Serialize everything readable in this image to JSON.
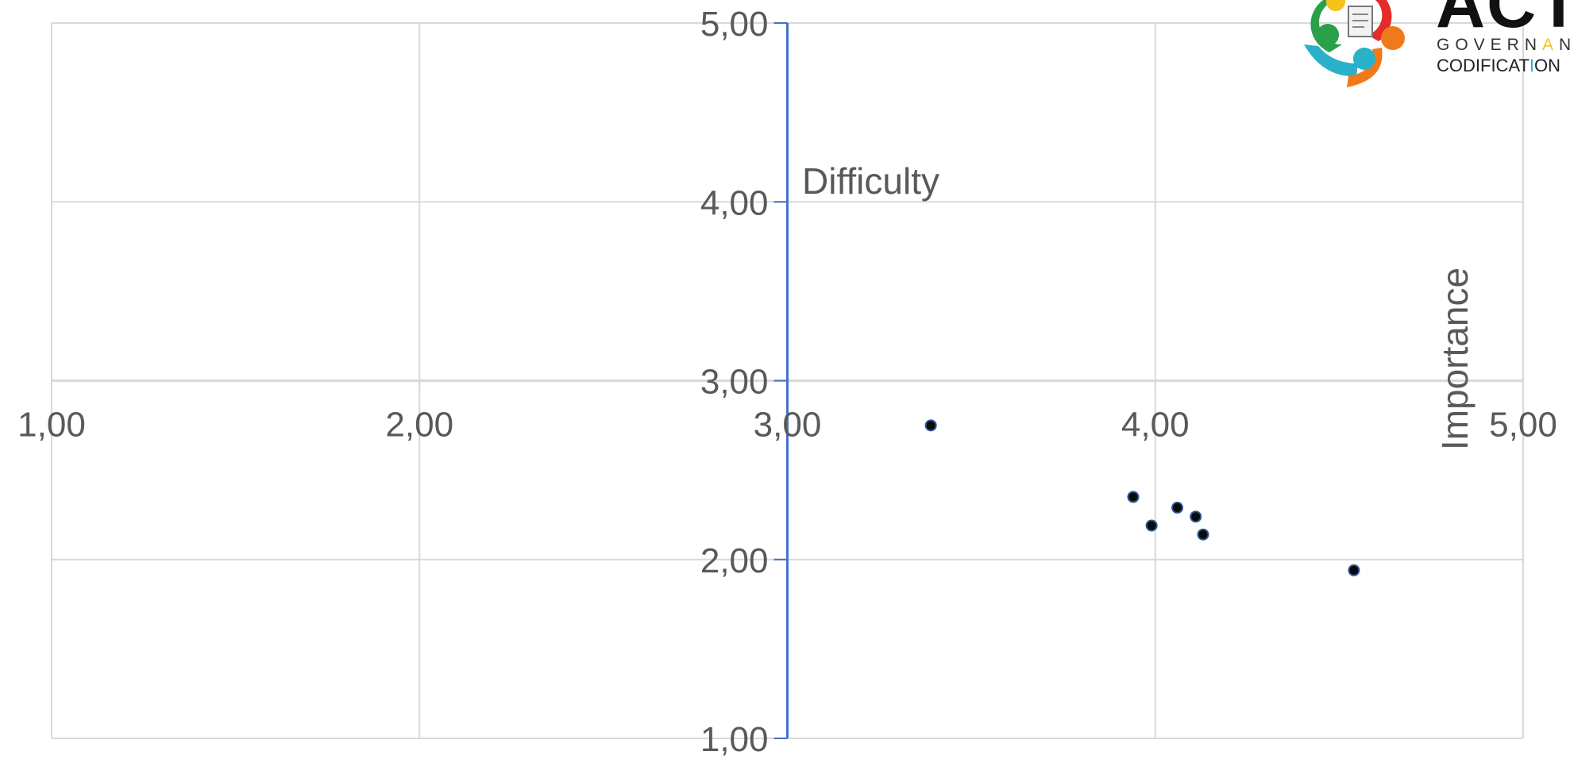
{
  "chart_data": {
    "type": "scatter",
    "xlabel": "Importance",
    "ylabel": "Difficulty",
    "xlim": [
      1,
      5
    ],
    "ylim": [
      1,
      5
    ],
    "x_ticks": [
      "1,00",
      "2,00",
      "3,00",
      "4,00",
      "5,00"
    ],
    "y_ticks": [
      "1,00",
      "2,00",
      "3,00",
      "4,00",
      "5,00"
    ],
    "x_tick_values": [
      1,
      2,
      3,
      4,
      5
    ],
    "y_tick_values": [
      1,
      2,
      3,
      4,
      5
    ],
    "y_axis_crosses_x": 3,
    "x_axis_crosses_y": 3,
    "grid": true,
    "points": [
      {
        "x": 3.39,
        "y": 2.75
      },
      {
        "x": 3.94,
        "y": 2.35
      },
      {
        "x": 3.99,
        "y": 2.19
      },
      {
        "x": 4.06,
        "y": 2.29
      },
      {
        "x": 4.11,
        "y": 2.24
      },
      {
        "x": 4.13,
        "y": 2.14
      },
      {
        "x": 4.54,
        "y": 1.94
      }
    ],
    "colors": {
      "point": "#0a0a0a",
      "point_stroke": "#2f5597",
      "y_axis": "#4472c4",
      "grid": "#d9d9d9",
      "text": "#595959"
    }
  },
  "logo": {
    "brand": "ACT",
    "line2_prefix": "GOVERN",
    "line2_accent": "A",
    "line2_suffix": "N",
    "line3_prefix": "CODIFICAT",
    "line3_accent": "I",
    "line3_suffix": "ON",
    "colors": {
      "green": "#2aa04a",
      "red": "#e52a2a",
      "blue": "#2ab0c8",
      "orange": "#f07a1a",
      "yellow": "#f6c21a"
    }
  }
}
